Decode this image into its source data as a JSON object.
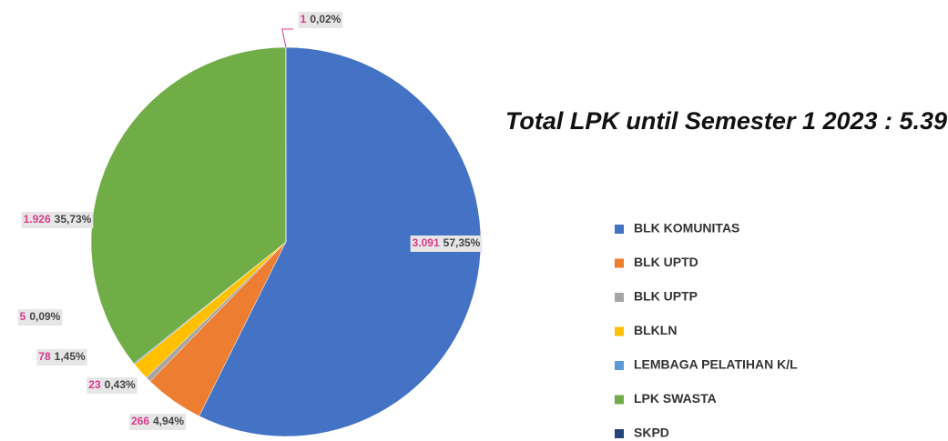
{
  "chart_data": {
    "type": "pie",
    "title": "Total LPK until Semester 1 2023 : 5.390",
    "categories": [
      "BLK KOMUNITAS",
      "BLK UPTD",
      "BLK UPTP",
      "BLKLN",
      "LEMBAGA PELATIHAN K/L",
      "LPK SWASTA",
      "SKPD",
      null
    ],
    "values": [
      3091,
      266,
      23,
      78,
      5,
      1926,
      0,
      1
    ],
    "value_labels": [
      "3.091",
      "266",
      "23",
      "78",
      "5",
      "1.926",
      null,
      "1"
    ],
    "percents": [
      57.35,
      4.94,
      0.43,
      1.45,
      0.09,
      35.73,
      null,
      0.02
    ],
    "percent_labels": [
      "57,35%",
      "4,94%",
      "0,43%",
      "1,45%",
      "0,09%",
      "35,73%",
      null,
      "0,02%"
    ],
    "colors": [
      "#4472c4",
      "#ed7d31",
      "#a5a5a5",
      "#ffc000",
      "#5b9bd5",
      "#70ad47",
      "#264478",
      "#d93a8c"
    ]
  }
}
